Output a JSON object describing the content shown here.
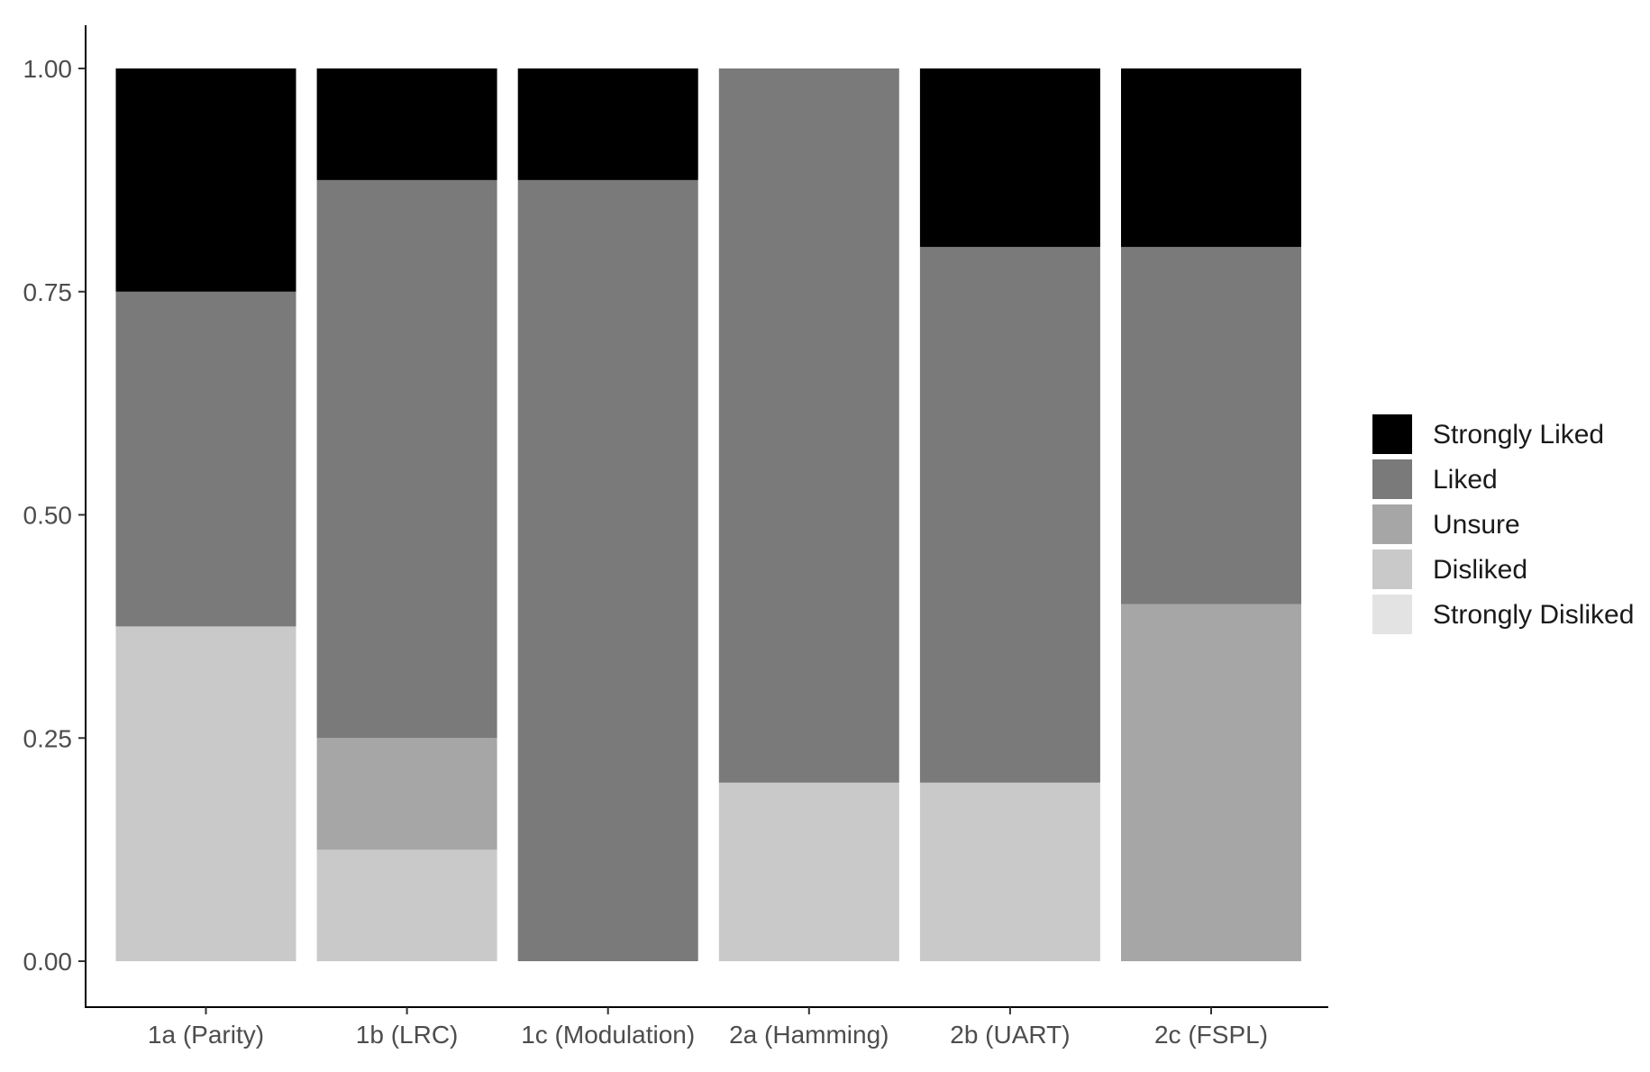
{
  "chart_data": {
    "type": "bar",
    "stacked": true,
    "title": "",
    "xlabel": "",
    "ylabel": "",
    "ylim": [
      0,
      1
    ],
    "yticks": [
      "0.00",
      "0.25",
      "0.50",
      "0.75",
      "1.00"
    ],
    "categories": [
      "1a (Parity)",
      "1b (LRC)",
      "1c (Modulation)",
      "2a (Hamming)",
      "2b (UART)",
      "2c (FSPL)"
    ],
    "series": [
      {
        "name": "Strongly Disliked",
        "color": "#e3e3e3",
        "values": [
          0,
          0,
          0,
          0,
          0,
          0
        ]
      },
      {
        "name": "Disliked",
        "color": "#c9c9c9",
        "values": [
          0.375,
          0.125,
          0,
          0.2,
          0.2,
          0
        ]
      },
      {
        "name": "Unsure",
        "color": "#a6a6a6",
        "values": [
          0,
          0.125,
          0,
          0,
          0,
          0.4
        ]
      },
      {
        "name": "Liked",
        "color": "#7a7a7a",
        "values": [
          0.375,
          0.625,
          0.875,
          0.8,
          0.6,
          0.4
        ]
      },
      {
        "name": "Strongly Liked",
        "color": "#000000",
        "values": [
          0.25,
          0.125,
          0.125,
          0,
          0.2,
          0.2
        ]
      }
    ],
    "legend": {
      "position": "right",
      "order": [
        "Strongly Liked",
        "Liked",
        "Unsure",
        "Disliked",
        "Strongly Disliked"
      ]
    },
    "grid": false
  }
}
